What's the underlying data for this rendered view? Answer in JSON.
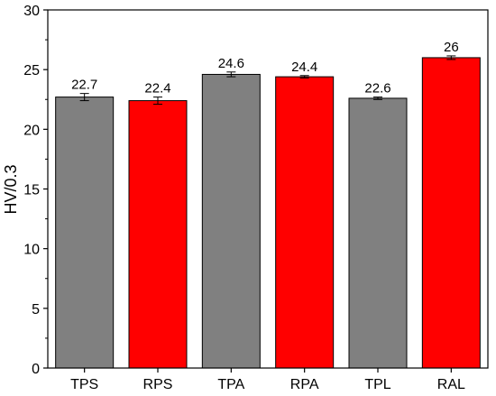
{
  "chart_data": {
    "type": "bar",
    "title": "",
    "xlabel": "",
    "ylabel": "HV/0.3",
    "categories": [
      "TPS",
      "RPS",
      "TPA",
      "RPA",
      "TPL",
      "RAL"
    ],
    "values": [
      22.7,
      22.4,
      24.6,
      24.4,
      22.6,
      26
    ],
    "value_labels": [
      "22.7",
      "22.4",
      "24.6",
      "24.4",
      "22.6",
      "26"
    ],
    "errors": [
      0.3,
      0.3,
      0.2,
      0.1,
      0.1,
      0.15
    ],
    "bar_colors": [
      "#808080",
      "#ff0000",
      "#808080",
      "#ff0000",
      "#808080",
      "#ff0000"
    ],
    "ylim": [
      0,
      30
    ],
    "yticks": [
      0,
      5,
      10,
      15,
      20,
      25,
      30
    ],
    "grid": false,
    "legend": "none"
  }
}
